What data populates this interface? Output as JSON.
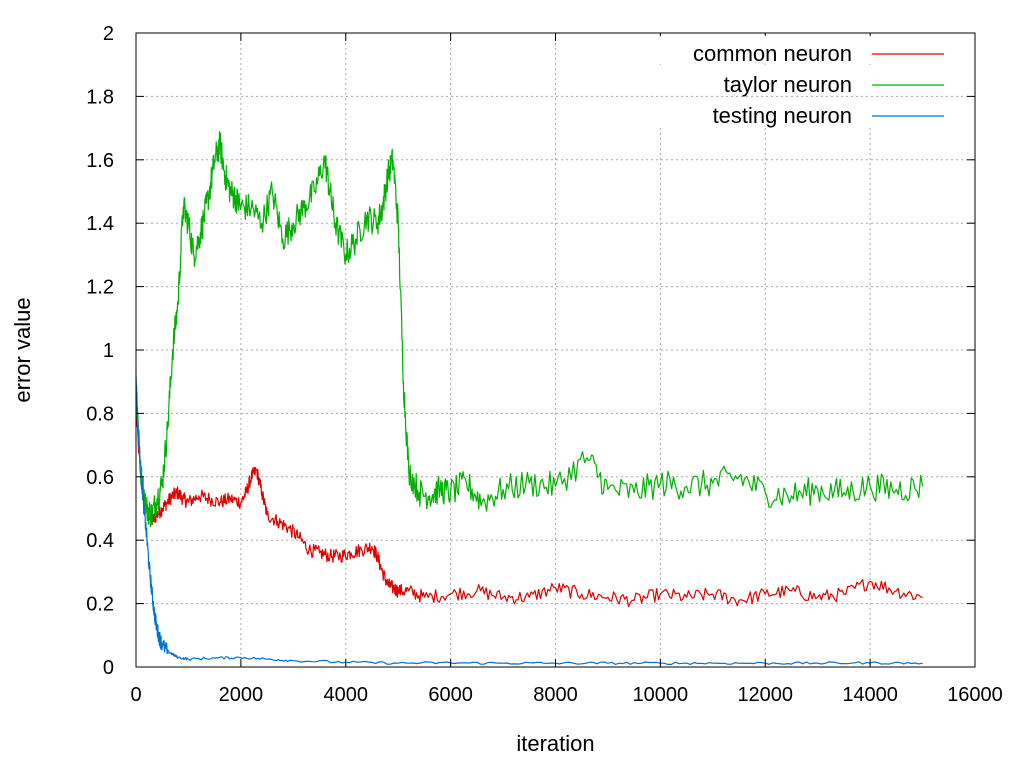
{
  "chart_data": {
    "type": "line",
    "title": "",
    "xlabel": "iteration",
    "ylabel": "error value",
    "xlim": [
      0,
      16000
    ],
    "ylim": [
      0,
      2
    ],
    "xticks": [
      "0",
      "2000",
      "4000",
      "6000",
      "8000",
      "10000",
      "12000",
      "14000",
      "16000"
    ],
    "yticks": [
      "0",
      "0.2",
      "0.4",
      "0.6",
      "0.8",
      "1",
      "1.2",
      "1.4",
      "1.6",
      "1.8",
      "2"
    ],
    "grid": true,
    "legend_position": "top-right",
    "series": [
      {
        "name": "common neuron",
        "color": "#e00000",
        "x": [
          0,
          100,
          200,
          300,
          400,
          500,
          600,
          700,
          800,
          900,
          1000,
          1200,
          1400,
          1600,
          1800,
          2000,
          2100,
          2200,
          2300,
          2400,
          2500,
          2700,
          2900,
          3100,
          3300,
          3500,
          3700,
          3900,
          4100,
          4300,
          4500,
          4600,
          4700,
          4800,
          4900,
          5000,
          5200,
          5500,
          6000,
          6500,
          7000,
          7500,
          8000,
          8500,
          9000,
          9500,
          10000,
          10500,
          11000,
          11500,
          12000,
          12500,
          13000,
          13500,
          14000,
          14500,
          15000
        ],
        "y": [
          0.8,
          0.58,
          0.5,
          0.46,
          0.48,
          0.5,
          0.52,
          0.54,
          0.55,
          0.53,
          0.52,
          0.54,
          0.53,
          0.52,
          0.53,
          0.52,
          0.55,
          0.6,
          0.62,
          0.55,
          0.48,
          0.46,
          0.44,
          0.41,
          0.37,
          0.36,
          0.35,
          0.35,
          0.36,
          0.37,
          0.38,
          0.35,
          0.3,
          0.26,
          0.25,
          0.24,
          0.24,
          0.22,
          0.23,
          0.24,
          0.22,
          0.22,
          0.25,
          0.23,
          0.22,
          0.21,
          0.23,
          0.22,
          0.23,
          0.21,
          0.23,
          0.24,
          0.22,
          0.23,
          0.27,
          0.24,
          0.22
        ]
      },
      {
        "name": "taylor neuron",
        "color": "#00b000",
        "x": [
          0,
          100,
          200,
          300,
          400,
          500,
          600,
          700,
          800,
          900,
          1000,
          1100,
          1200,
          1300,
          1400,
          1500,
          1600,
          1700,
          1800,
          1900,
          2000,
          2200,
          2400,
          2600,
          2800,
          3000,
          3200,
          3400,
          3600,
          3700,
          3800,
          4000,
          4200,
          4400,
          4600,
          4700,
          4800,
          4900,
          5000,
          5100,
          5200,
          5400,
          5600,
          5800,
          6000,
          6300,
          6600,
          7000,
          7500,
          8000,
          8600,
          9000,
          9500,
          10000,
          10500,
          11000,
          11500,
          12000,
          12500,
          13000,
          13500,
          14000,
          14500,
          15000
        ],
        "y": [
          0.85,
          0.6,
          0.5,
          0.48,
          0.53,
          0.58,
          0.75,
          1.0,
          1.15,
          1.45,
          1.4,
          1.3,
          1.35,
          1.42,
          1.5,
          1.6,
          1.65,
          1.55,
          1.5,
          1.48,
          1.45,
          1.45,
          1.4,
          1.5,
          1.35,
          1.4,
          1.45,
          1.5,
          1.6,
          1.5,
          1.4,
          1.3,
          1.35,
          1.42,
          1.4,
          1.45,
          1.55,
          1.6,
          1.4,
          0.9,
          0.62,
          0.55,
          0.54,
          0.56,
          0.55,
          0.58,
          0.52,
          0.56,
          0.58,
          0.57,
          0.66,
          0.56,
          0.55,
          0.58,
          0.57,
          0.58,
          0.6,
          0.55,
          0.54,
          0.56,
          0.55,
          0.57,
          0.56,
          0.57
        ]
      },
      {
        "name": "testing neuron",
        "color": "#0072d0",
        "x": [
          0,
          50,
          100,
          150,
          200,
          250,
          300,
          350,
          400,
          450,
          500,
          600,
          700,
          800,
          1000,
          1500,
          2000,
          2500,
          3000,
          4000,
          5000,
          6000,
          7000,
          8000,
          9000,
          10000,
          11000,
          12000,
          13000,
          14000,
          15000
        ],
        "y": [
          0.92,
          0.72,
          0.6,
          0.5,
          0.42,
          0.32,
          0.24,
          0.17,
          0.12,
          0.09,
          0.07,
          0.05,
          0.04,
          0.03,
          0.025,
          0.028,
          0.03,
          0.025,
          0.02,
          0.015,
          0.012,
          0.013,
          0.012,
          0.012,
          0.012,
          0.012,
          0.012,
          0.012,
          0.012,
          0.013,
          0.012
        ]
      }
    ]
  }
}
